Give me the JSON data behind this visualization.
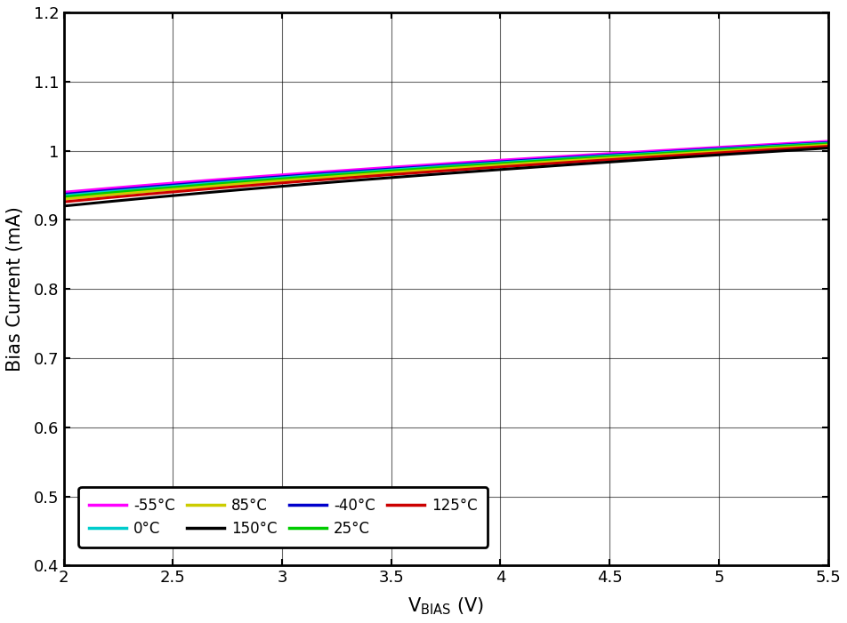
{
  "xlabel": "V_BIAS (V)",
  "ylabel": "Bias Current (mA)",
  "xlim": [
    2,
    5.5
  ],
  "ylim": [
    0.4,
    1.2
  ],
  "xticks": [
    2,
    2.5,
    3,
    3.5,
    4,
    4.5,
    5,
    5.5
  ],
  "yticks": [
    0.4,
    0.5,
    0.6,
    0.7,
    0.8,
    0.9,
    1.0,
    1.1,
    1.2
  ],
  "background_color": "#ffffff",
  "series": [
    {
      "label": "-55°C",
      "color": "#ff00ff",
      "lw": 2.2,
      "v2_val": 0.94,
      "v5_val": 1.005,
      "v55_val": 1.013
    },
    {
      "label": "-40°C",
      "color": "#0000cc",
      "lw": 2.2,
      "v2_val": 0.937,
      "v5_val": 1.003,
      "v55_val": 1.011
    },
    {
      "label": "0°C",
      "color": "#00cccc",
      "lw": 2.2,
      "v2_val": 0.935,
      "v5_val": 1.002,
      "v55_val": 1.01
    },
    {
      "label": "25°C",
      "color": "#00cc00",
      "lw": 2.2,
      "v2_val": 0.933,
      "v5_val": 1.001,
      "v55_val": 1.008
    },
    {
      "label": "85°C",
      "color": "#cccc00",
      "lw": 2.2,
      "v2_val": 0.93,
      "v5_val": 0.999,
      "v55_val": 1.006
    },
    {
      "label": "125°C",
      "color": "#cc0000",
      "lw": 2.2,
      "v2_val": 0.926,
      "v5_val": 0.997,
      "v55_val": 1.004
    },
    {
      "label": "150°C",
      "color": "#000000",
      "lw": 2.2,
      "v2_val": 0.92,
      "v5_val": 0.994,
      "v55_val": 1.0
    }
  ],
  "legend_row1": [
    [
      "-55°C",
      "#ff00ff"
    ],
    [
      "0°C",
      "#00cccc"
    ],
    [
      "85°C",
      "#cccc00"
    ],
    [
      "150°C",
      "#000000"
    ]
  ],
  "legend_row2": [
    [
      "-40°C",
      "#0000cc"
    ],
    [
      "25°C",
      "#00cc00"
    ],
    [
      "125°C",
      "#cc0000"
    ]
  ]
}
